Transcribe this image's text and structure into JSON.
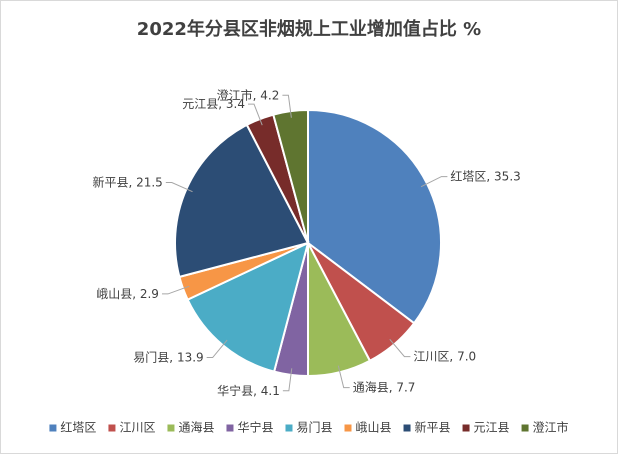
{
  "chart_data": {
    "type": "pie",
    "title": "2022年分县区非烟规上工业增加值占比 %",
    "label_separator": ", ",
    "categories": [
      "红塔区",
      "江川区",
      "通海县",
      "华宁县",
      "易门县",
      "峨山县",
      "新平县",
      "元江县",
      "澄江市"
    ],
    "values": [
      35.3,
      7.0,
      7.7,
      4.1,
      13.9,
      2.9,
      21.5,
      3.4,
      4.2
    ],
    "value_labels": [
      "35.3",
      "7.0",
      "7.7",
      "4.1",
      "13.9",
      "2.9",
      "21.5",
      "3.4",
      "4.2"
    ],
    "colors": [
      "#4f81bd",
      "#c0504d",
      "#9bbb59",
      "#8064a2",
      "#4bacc6",
      "#f79646",
      "#2c4d75",
      "#772c2a",
      "#5f7530"
    ],
    "legend": "bottom"
  }
}
